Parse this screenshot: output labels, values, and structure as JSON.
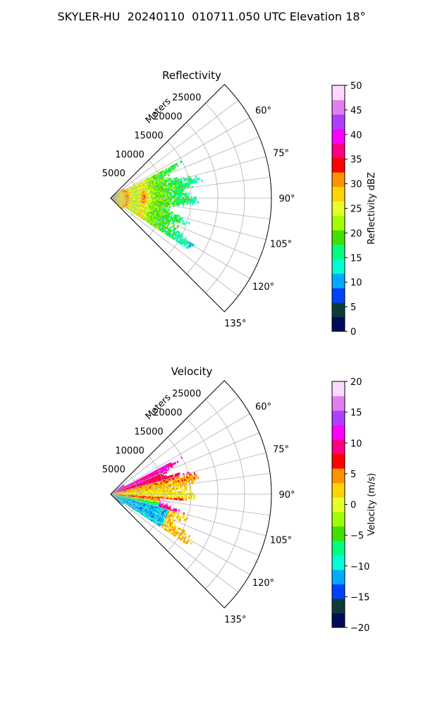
{
  "figure": {
    "suptitle": "SKYLER-HU  20240110  010711.050 UTC Elevation 18°"
  },
  "chart_data": [
    {
      "type": "heatmap",
      "projection": "polar-sector",
      "title": "Reflectivity",
      "range_label": "Meters",
      "range_ticks": [
        "5000",
        "10000",
        "15000",
        "20000",
        "25000"
      ],
      "range_tick_values": [
        5000,
        10000,
        15000,
        20000,
        25000
      ],
      "range_max": 30000,
      "azimuth_ticks": [
        "60°",
        "75°",
        "90°",
        "105°",
        "120°",
        "135°"
      ],
      "azimuth_tick_values": [
        60,
        75,
        90,
        105,
        120,
        135
      ],
      "azimuth_range": [
        45,
        135
      ],
      "grid": true,
      "data_extent_m": 15000,
      "colorbar": {
        "label": "Reflectivity dBZ",
        "ticks": [
          "0",
          "5",
          "10",
          "15",
          "20",
          "25",
          "30",
          "35",
          "40",
          "45",
          "50"
        ],
        "vmin": 0,
        "vmax": 50,
        "colors": [
          "#000a5a",
          "#0b3c3a",
          "#0040ff",
          "#00aaff",
          "#00ffd5",
          "#00ff80",
          "#40e000",
          "#a0ff00",
          "#e6ff2a",
          "#ffd500",
          "#ff9400",
          "#ff0000",
          "#ff0080",
          "#ff00ff",
          "#b040ff",
          "#e080f0",
          "#ffd8ff"
        ]
      },
      "description_values": {
        "dominant_dbz_range": [
          15,
          30
        ],
        "peak_dbz": 37
      }
    },
    {
      "type": "heatmap",
      "projection": "polar-sector",
      "title": "Velocity",
      "range_label": "Meters",
      "range_ticks": [
        "5000",
        "10000",
        "15000",
        "20000",
        "25000"
      ],
      "range_tick_values": [
        5000,
        10000,
        15000,
        20000,
        25000
      ],
      "range_max": 30000,
      "azimuth_ticks": [
        "60°",
        "75°",
        "90°",
        "105°",
        "120°",
        "135°"
      ],
      "azimuth_tick_values": [
        60,
        75,
        90,
        105,
        120,
        135
      ],
      "azimuth_range": [
        45,
        135
      ],
      "grid": true,
      "data_extent_m": 15000,
      "colorbar": {
        "label": "Velocity (m/s)",
        "ticks": [
          "−20",
          "−15",
          "−10",
          "−5",
          "0",
          "5",
          "10",
          "15",
          "20"
        ],
        "vmin": -20,
        "vmax": 20,
        "colors": [
          "#000a5a",
          "#0b3c3a",
          "#0040ff",
          "#00aaff",
          "#00ffd5",
          "#00ff80",
          "#40e000",
          "#a0ff00",
          "#e6ff2a",
          "#ffd500",
          "#ff9400",
          "#ff0000",
          "#ff0080",
          "#ff00ff",
          "#b040ff",
          "#e080f0",
          "#ffd8ff"
        ]
      },
      "description_values": {
        "upper_sector_v": [
          10,
          18
        ],
        "centre_v": [
          0,
          5
        ],
        "lower_sector_v": [
          -15,
          12
        ]
      }
    }
  ]
}
